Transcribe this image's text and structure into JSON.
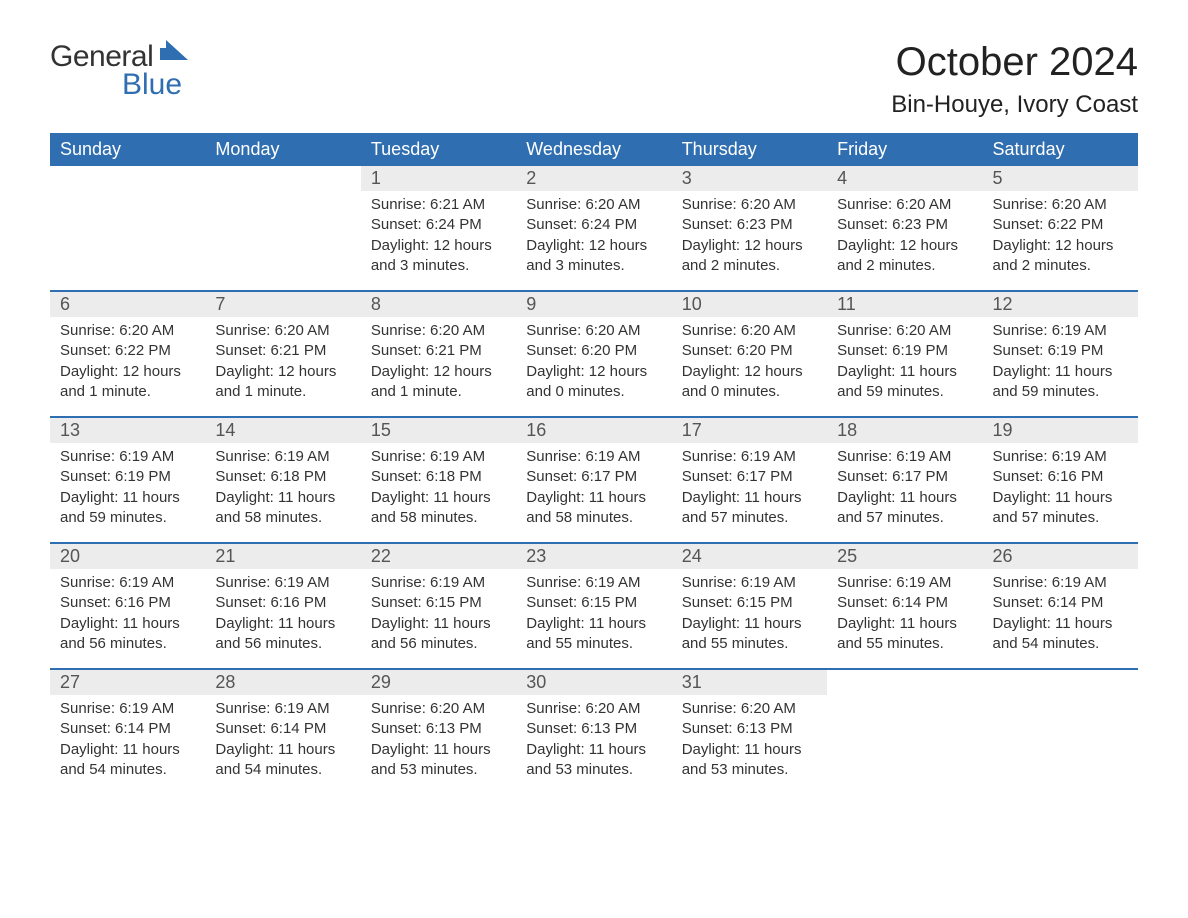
{
  "logo": {
    "word1": "General",
    "word2": "Blue",
    "flag_color": "#2f6eb0",
    "word1_color": "#333333",
    "word2_color": "#2f6eb0"
  },
  "title": "October 2024",
  "location": "Bin-Houye, Ivory Coast",
  "colors": {
    "header_bg": "#2f6eb0",
    "header_text": "#ffffff",
    "daynum_bg": "#ececec",
    "daynum_text": "#555555",
    "body_text": "#333333",
    "week_border": "#2f6eb0",
    "page_bg": "#ffffff"
  },
  "typography": {
    "title_fontsize": 40,
    "location_fontsize": 24,
    "weekday_fontsize": 18,
    "daynum_fontsize": 18,
    "body_fontsize": 15
  },
  "weekdays": [
    "Sunday",
    "Monday",
    "Tuesday",
    "Wednesday",
    "Thursday",
    "Friday",
    "Saturday"
  ],
  "weeks": [
    [
      {
        "n": "",
        "sunrise": "",
        "sunset": "",
        "daylight": ""
      },
      {
        "n": "",
        "sunrise": "",
        "sunset": "",
        "daylight": ""
      },
      {
        "n": "1",
        "sunrise": "Sunrise: 6:21 AM",
        "sunset": "Sunset: 6:24 PM",
        "daylight": "Daylight: 12 hours and 3 minutes."
      },
      {
        "n": "2",
        "sunrise": "Sunrise: 6:20 AM",
        "sunset": "Sunset: 6:24 PM",
        "daylight": "Daylight: 12 hours and 3 minutes."
      },
      {
        "n": "3",
        "sunrise": "Sunrise: 6:20 AM",
        "sunset": "Sunset: 6:23 PM",
        "daylight": "Daylight: 12 hours and 2 minutes."
      },
      {
        "n": "4",
        "sunrise": "Sunrise: 6:20 AM",
        "sunset": "Sunset: 6:23 PM",
        "daylight": "Daylight: 12 hours and 2 minutes."
      },
      {
        "n": "5",
        "sunrise": "Sunrise: 6:20 AM",
        "sunset": "Sunset: 6:22 PM",
        "daylight": "Daylight: 12 hours and 2 minutes."
      }
    ],
    [
      {
        "n": "6",
        "sunrise": "Sunrise: 6:20 AM",
        "sunset": "Sunset: 6:22 PM",
        "daylight": "Daylight: 12 hours and 1 minute."
      },
      {
        "n": "7",
        "sunrise": "Sunrise: 6:20 AM",
        "sunset": "Sunset: 6:21 PM",
        "daylight": "Daylight: 12 hours and 1 minute."
      },
      {
        "n": "8",
        "sunrise": "Sunrise: 6:20 AM",
        "sunset": "Sunset: 6:21 PM",
        "daylight": "Daylight: 12 hours and 1 minute."
      },
      {
        "n": "9",
        "sunrise": "Sunrise: 6:20 AM",
        "sunset": "Sunset: 6:20 PM",
        "daylight": "Daylight: 12 hours and 0 minutes."
      },
      {
        "n": "10",
        "sunrise": "Sunrise: 6:20 AM",
        "sunset": "Sunset: 6:20 PM",
        "daylight": "Daylight: 12 hours and 0 minutes."
      },
      {
        "n": "11",
        "sunrise": "Sunrise: 6:20 AM",
        "sunset": "Sunset: 6:19 PM",
        "daylight": "Daylight: 11 hours and 59 minutes."
      },
      {
        "n": "12",
        "sunrise": "Sunrise: 6:19 AM",
        "sunset": "Sunset: 6:19 PM",
        "daylight": "Daylight: 11 hours and 59 minutes."
      }
    ],
    [
      {
        "n": "13",
        "sunrise": "Sunrise: 6:19 AM",
        "sunset": "Sunset: 6:19 PM",
        "daylight": "Daylight: 11 hours and 59 minutes."
      },
      {
        "n": "14",
        "sunrise": "Sunrise: 6:19 AM",
        "sunset": "Sunset: 6:18 PM",
        "daylight": "Daylight: 11 hours and 58 minutes."
      },
      {
        "n": "15",
        "sunrise": "Sunrise: 6:19 AM",
        "sunset": "Sunset: 6:18 PM",
        "daylight": "Daylight: 11 hours and 58 minutes."
      },
      {
        "n": "16",
        "sunrise": "Sunrise: 6:19 AM",
        "sunset": "Sunset: 6:17 PM",
        "daylight": "Daylight: 11 hours and 58 minutes."
      },
      {
        "n": "17",
        "sunrise": "Sunrise: 6:19 AM",
        "sunset": "Sunset: 6:17 PM",
        "daylight": "Daylight: 11 hours and 57 minutes."
      },
      {
        "n": "18",
        "sunrise": "Sunrise: 6:19 AM",
        "sunset": "Sunset: 6:17 PM",
        "daylight": "Daylight: 11 hours and 57 minutes."
      },
      {
        "n": "19",
        "sunrise": "Sunrise: 6:19 AM",
        "sunset": "Sunset: 6:16 PM",
        "daylight": "Daylight: 11 hours and 57 minutes."
      }
    ],
    [
      {
        "n": "20",
        "sunrise": "Sunrise: 6:19 AM",
        "sunset": "Sunset: 6:16 PM",
        "daylight": "Daylight: 11 hours and 56 minutes."
      },
      {
        "n": "21",
        "sunrise": "Sunrise: 6:19 AM",
        "sunset": "Sunset: 6:16 PM",
        "daylight": "Daylight: 11 hours and 56 minutes."
      },
      {
        "n": "22",
        "sunrise": "Sunrise: 6:19 AM",
        "sunset": "Sunset: 6:15 PM",
        "daylight": "Daylight: 11 hours and 56 minutes."
      },
      {
        "n": "23",
        "sunrise": "Sunrise: 6:19 AM",
        "sunset": "Sunset: 6:15 PM",
        "daylight": "Daylight: 11 hours and 55 minutes."
      },
      {
        "n": "24",
        "sunrise": "Sunrise: 6:19 AM",
        "sunset": "Sunset: 6:15 PM",
        "daylight": "Daylight: 11 hours and 55 minutes."
      },
      {
        "n": "25",
        "sunrise": "Sunrise: 6:19 AM",
        "sunset": "Sunset: 6:14 PM",
        "daylight": "Daylight: 11 hours and 55 minutes."
      },
      {
        "n": "26",
        "sunrise": "Sunrise: 6:19 AM",
        "sunset": "Sunset: 6:14 PM",
        "daylight": "Daylight: 11 hours and 54 minutes."
      }
    ],
    [
      {
        "n": "27",
        "sunrise": "Sunrise: 6:19 AM",
        "sunset": "Sunset: 6:14 PM",
        "daylight": "Daylight: 11 hours and 54 minutes."
      },
      {
        "n": "28",
        "sunrise": "Sunrise: 6:19 AM",
        "sunset": "Sunset: 6:14 PM",
        "daylight": "Daylight: 11 hours and 54 minutes."
      },
      {
        "n": "29",
        "sunrise": "Sunrise: 6:20 AM",
        "sunset": "Sunset: 6:13 PM",
        "daylight": "Daylight: 11 hours and 53 minutes."
      },
      {
        "n": "30",
        "sunrise": "Sunrise: 6:20 AM",
        "sunset": "Sunset: 6:13 PM",
        "daylight": "Daylight: 11 hours and 53 minutes."
      },
      {
        "n": "31",
        "sunrise": "Sunrise: 6:20 AM",
        "sunset": "Sunset: 6:13 PM",
        "daylight": "Daylight: 11 hours and 53 minutes."
      },
      {
        "n": "",
        "sunrise": "",
        "sunset": "",
        "daylight": ""
      },
      {
        "n": "",
        "sunrise": "",
        "sunset": "",
        "daylight": ""
      }
    ]
  ]
}
